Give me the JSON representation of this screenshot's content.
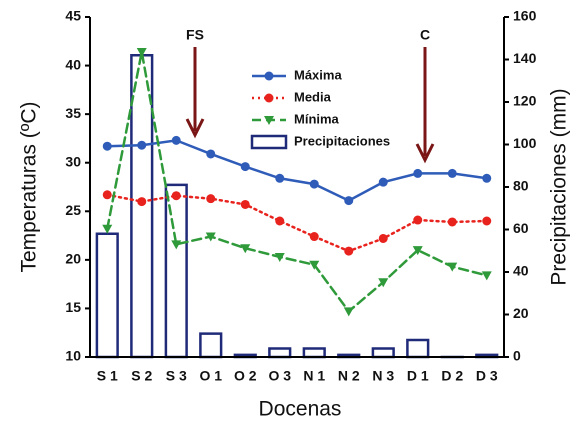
{
  "chart_data": {
    "type": "line",
    "x_label": "Docenas",
    "y_label": "Temperaturas (ºC)",
    "y2_label": "Precipitaciones (mm)",
    "categories": [
      "S 1",
      "S 2",
      "S 3",
      "O 1",
      "O 2",
      "O 3",
      "N 1",
      "N 2",
      "N 3",
      "D 1",
      "D 2",
      "D 3"
    ],
    "ylim": [
      10,
      45
    ],
    "yticks": [
      10,
      15,
      20,
      25,
      30,
      35,
      40,
      45
    ],
    "y2lim": [
      0,
      160
    ],
    "y2ticks": [
      0,
      20,
      40,
      60,
      80,
      100,
      120,
      140,
      160
    ],
    "legend": "upper center",
    "annotations": [
      "FS",
      "C"
    ],
    "series": [
      {
        "name": "Máxima",
        "color": "#2e5cb8",
        "style": "solid",
        "marker": "circle",
        "values": [
          31.7,
          31.8,
          32.3,
          30.9,
          29.6,
          28.4,
          27.8,
          26.1,
          28.0,
          28.9,
          28.9,
          28.4
        ]
      },
      {
        "name": "Media",
        "color": "#e8231e",
        "style": "dotted",
        "marker": "circle",
        "values": [
          26.7,
          26.0,
          26.6,
          26.3,
          25.7,
          24.0,
          22.4,
          20.9,
          22.2,
          24.1,
          23.9,
          24.0
        ]
      },
      {
        "name": "Mínima",
        "color": "#2f9a3a",
        "style": "dashed",
        "marker": "triangle",
        "values": [
          23.2,
          41.4,
          21.6,
          22.4,
          21.2,
          20.3,
          19.5,
          14.7,
          17.7,
          21.0,
          19.3,
          18.4
        ]
      },
      {
        "name": "Precipitaciones",
        "color": "#1f2a78",
        "type": "bar",
        "axis": "y2",
        "values": [
          58,
          142,
          81,
          11,
          1,
          4,
          4,
          1,
          4,
          8,
          0,
          1
        ]
      }
    ]
  }
}
